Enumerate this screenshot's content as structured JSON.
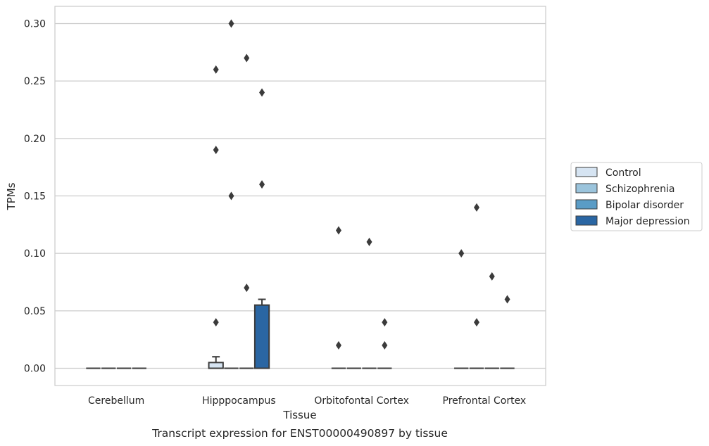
{
  "chart_data": {
    "type": "box",
    "title": "",
    "caption": "Transcript expression for ENST00000490897 by tissue",
    "xlabel": "Tissue",
    "ylabel": "TPMs",
    "ylim": [
      -0.015,
      0.315
    ],
    "yticks": [
      0.0,
      0.05,
      0.1,
      0.15,
      0.2,
      0.25,
      0.3
    ],
    "ytick_labels": [
      "0.00",
      "0.05",
      "0.10",
      "0.15",
      "0.20",
      "0.25",
      "0.30"
    ],
    "grid": "horizontal",
    "legend_position": "right",
    "categories": [
      "Cerebellum",
      "Hipppocampus",
      "Orbitofontal Cortex",
      "Prefrontal Cortex"
    ],
    "series": [
      {
        "name": "Control",
        "color": "#d6e4f2",
        "boxes": [
          {
            "q1": 0,
            "median": 0,
            "q3": 0,
            "whisker_low": 0,
            "whisker_high": 0,
            "outliers": []
          },
          {
            "q1": 0,
            "median": 0,
            "q3": 0.005,
            "whisker_low": 0,
            "whisker_high": 0.01,
            "outliers": [
              0.04,
              0.19,
              0.26
            ]
          },
          {
            "q1": 0,
            "median": 0,
            "q3": 0,
            "whisker_low": 0,
            "whisker_high": 0,
            "outliers": [
              0.02,
              0.12
            ]
          },
          {
            "q1": 0,
            "median": 0,
            "q3": 0,
            "whisker_low": 0,
            "whisker_high": 0,
            "outliers": [
              0.1
            ]
          }
        ]
      },
      {
        "name": "Schizophrenia",
        "color": "#9bc4dc",
        "boxes": [
          {
            "q1": 0,
            "median": 0,
            "q3": 0,
            "whisker_low": 0,
            "whisker_high": 0,
            "outliers": []
          },
          {
            "q1": 0,
            "median": 0,
            "q3": 0,
            "whisker_low": 0,
            "whisker_high": 0,
            "outliers": [
              0.15,
              0.3
            ]
          },
          {
            "q1": 0,
            "median": 0,
            "q3": 0,
            "whisker_low": 0,
            "whisker_high": 0,
            "outliers": []
          },
          {
            "q1": 0,
            "median": 0,
            "q3": 0,
            "whisker_low": 0,
            "whisker_high": 0,
            "outliers": [
              0.04,
              0.14
            ]
          }
        ]
      },
      {
        "name": "Bipolar disorder",
        "color": "#5a9cc6",
        "boxes": [
          {
            "q1": 0,
            "median": 0,
            "q3": 0,
            "whisker_low": 0,
            "whisker_high": 0,
            "outliers": []
          },
          {
            "q1": 0,
            "median": 0,
            "q3": 0,
            "whisker_low": 0,
            "whisker_high": 0,
            "outliers": [
              0.07,
              0.27
            ]
          },
          {
            "q1": 0,
            "median": 0,
            "q3": 0,
            "whisker_low": 0,
            "whisker_high": 0,
            "outliers": [
              0.11
            ]
          },
          {
            "q1": 0,
            "median": 0,
            "q3": 0,
            "whisker_low": 0,
            "whisker_high": 0,
            "outliers": [
              0.08
            ]
          }
        ]
      },
      {
        "name": "Major depression",
        "color": "#2a66a3",
        "boxes": [
          {
            "q1": 0,
            "median": 0,
            "q3": 0,
            "whisker_low": 0,
            "whisker_high": 0,
            "outliers": []
          },
          {
            "q1": 0,
            "median": 0,
            "q3": 0.055,
            "whisker_low": 0,
            "whisker_high": 0.06,
            "outliers": [
              0.16,
              0.24
            ]
          },
          {
            "q1": 0,
            "median": 0,
            "q3": 0,
            "whisker_low": 0,
            "whisker_high": 0,
            "outliers": [
              0.02,
              0.04
            ]
          },
          {
            "q1": 0,
            "median": 0,
            "q3": 0,
            "whisker_low": 0,
            "whisker_high": 0,
            "outliers": [
              0.06
            ]
          }
        ]
      }
    ]
  }
}
